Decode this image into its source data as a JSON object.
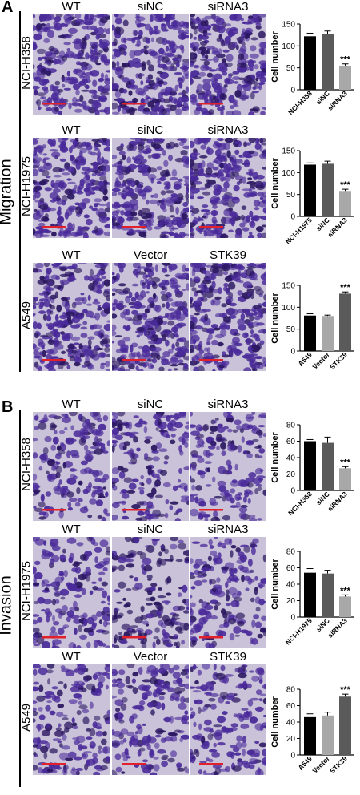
{
  "panels": [
    {
      "letter": "A",
      "title": "Migration",
      "rows": [
        {
          "label": "NCI-H358",
          "columns": [
            "WT",
            "siNC",
            "siRNA3"
          ]
        },
        {
          "label": "NCI-H1975",
          "columns": [
            "WT",
            "siNC",
            "siRNA3"
          ]
        },
        {
          "label": "A549",
          "columns": [
            "WT",
            "Vector",
            "STK39"
          ]
        }
      ]
    },
    {
      "letter": "B",
      "title": "Invasion",
      "rows": [
        {
          "label": "NCI-H358",
          "columns": [
            "WT",
            "siNC",
            "siRNA3"
          ]
        },
        {
          "label": "NCI-H1975",
          "columns": [
            "WT",
            "siNC",
            "siRNA3"
          ]
        },
        {
          "label": "A549",
          "columns": [
            "WT",
            "Vector",
            "STK39"
          ]
        }
      ]
    }
  ],
  "colors": {
    "stain_bg": "#c9c2d8",
    "stain_cell": "#4a2a9a",
    "stain_dark": "#2a1660",
    "scale_bar": "#e0202a",
    "bar_black": "#000000",
    "bar_dark_gray": "#5a5a5a",
    "bar_light_gray": "#a8a8a8"
  },
  "chart_data": [
    {
      "type": "bar",
      "panel": "A",
      "ylabel": "Cell number",
      "ylim": [
        0,
        150
      ],
      "yticks": [
        0,
        50,
        100,
        150
      ],
      "categories": [
        "NCI-H358",
        "siNC",
        "siRNA3"
      ],
      "values": [
        122,
        127,
        55
      ],
      "errors": [
        7,
        7,
        4
      ],
      "bar_colors": [
        "#000000",
        "#5a5a5a",
        "#a8a8a8"
      ],
      "annotations": [
        "",
        "",
        "***"
      ]
    },
    {
      "type": "bar",
      "panel": "A",
      "ylabel": "Cell number",
      "ylim": [
        0,
        150
      ],
      "yticks": [
        0,
        50,
        100,
        150
      ],
      "categories": [
        "NCI-H1975",
        "siNC",
        "siRNA3"
      ],
      "values": [
        118,
        120,
        58
      ],
      "errors": [
        4,
        6,
        4
      ],
      "bar_colors": [
        "#000000",
        "#5a5a5a",
        "#a8a8a8"
      ],
      "annotations": [
        "",
        "",
        "***"
      ]
    },
    {
      "type": "bar",
      "panel": "A",
      "ylabel": "Cell number",
      "ylim": [
        0,
        150
      ],
      "yticks": [
        0,
        50,
        100,
        150
      ],
      "categories": [
        "A549",
        "Vector",
        "STK39"
      ],
      "values": [
        81,
        80,
        131
      ],
      "errors": [
        4,
        2,
        4
      ],
      "bar_colors": [
        "#000000",
        "#a8a8a8",
        "#5a5a5a"
      ],
      "annotations": [
        "",
        "",
        "***"
      ]
    },
    {
      "type": "bar",
      "panel": "B",
      "ylabel": "Cell number",
      "ylim": [
        0,
        80
      ],
      "yticks": [
        0,
        20,
        40,
        60,
        80
      ],
      "categories": [
        "NCI-H358",
        "siNC",
        "siRNA3"
      ],
      "values": [
        60,
        58,
        27
      ],
      "errors": [
        2,
        7,
        2
      ],
      "bar_colors": [
        "#000000",
        "#5a5a5a",
        "#a8a8a8"
      ],
      "annotations": [
        "",
        "",
        "***"
      ]
    },
    {
      "type": "bar",
      "panel": "B",
      "ylabel": "Cell number",
      "ylim": [
        0,
        80
      ],
      "yticks": [
        0,
        20,
        40,
        60,
        80
      ],
      "categories": [
        "NCI-H1975",
        "siNC",
        "siRNA3"
      ],
      "values": [
        54,
        53,
        25
      ],
      "errors": [
        5,
        4,
        2
      ],
      "bar_colors": [
        "#000000",
        "#5a5a5a",
        "#a8a8a8"
      ],
      "annotations": [
        "",
        "",
        "***"
      ]
    },
    {
      "type": "bar",
      "panel": "B",
      "ylabel": "Cell number",
      "ylim": [
        0,
        80
      ],
      "yticks": [
        0,
        20,
        40,
        60,
        80
      ],
      "categories": [
        "A549",
        "Vector",
        "STK39"
      ],
      "values": [
        46,
        48,
        71
      ],
      "errors": [
        4,
        4,
        3
      ],
      "bar_colors": [
        "#000000",
        "#a8a8a8",
        "#5a5a5a"
      ],
      "annotations": [
        "",
        "",
        "***"
      ]
    }
  ]
}
